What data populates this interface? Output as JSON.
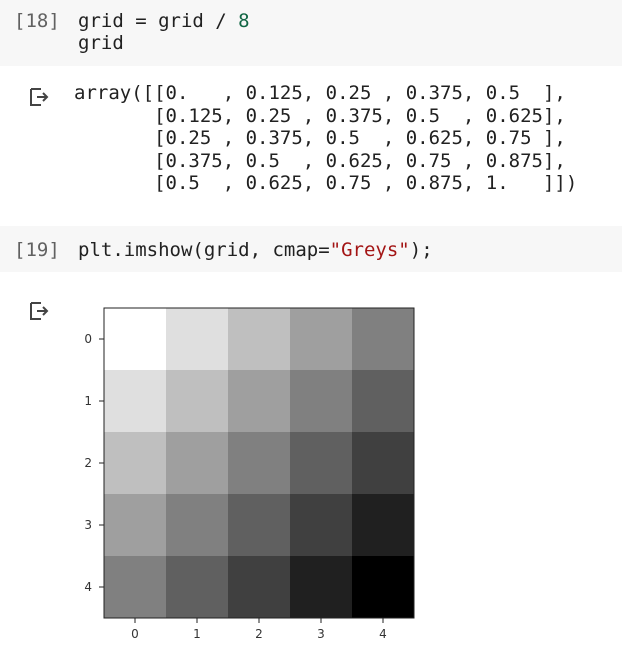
{
  "cells": [
    {
      "prompt": "[18]",
      "code_lines": [
        {
          "parts": [
            {
              "t": "grid = grid / ",
              "c": ""
            },
            {
              "t": "8",
              "c": "num"
            }
          ]
        },
        {
          "parts": [
            {
              "t": "grid",
              "c": ""
            }
          ]
        }
      ],
      "output_icon": "output-redirect-icon",
      "output_lines": [
        "array([[0.   , 0.125, 0.25 , 0.375, 0.5  ],",
        "       [0.125, 0.25 , 0.375, 0.5  , 0.625],",
        "       [0.25 , 0.375, 0.5  , 0.625, 0.75 ],",
        "       [0.375, 0.5  , 0.625, 0.75 , 0.875],",
        "       [0.5  , 0.625, 0.75 , 0.875, 1.   ]])"
      ]
    },
    {
      "prompt": "[19]",
      "code_lines": [
        {
          "parts": [
            {
              "t": "plt.imshow(grid, cmap=",
              "c": ""
            },
            {
              "t": "\"Greys\"",
              "c": "str"
            },
            {
              "t": ");",
              "c": ""
            }
          ]
        }
      ],
      "output_icon": "output-redirect-icon"
    }
  ],
  "chart_data": {
    "type": "heatmap",
    "colormap": "Greys",
    "x": [
      0,
      1,
      2,
      3,
      4
    ],
    "y": [
      0,
      1,
      2,
      3,
      4
    ],
    "x_tick_labels": [
      "0",
      "1",
      "2",
      "3",
      "4"
    ],
    "y_tick_labels": [
      "0",
      "1",
      "2",
      "3",
      "4"
    ],
    "values": [
      [
        0.0,
        0.125,
        0.25,
        0.375,
        0.5
      ],
      [
        0.125,
        0.25,
        0.375,
        0.5,
        0.625
      ],
      [
        0.25,
        0.375,
        0.5,
        0.625,
        0.75
      ],
      [
        0.375,
        0.5,
        0.625,
        0.75,
        0.875
      ],
      [
        0.5,
        0.625,
        0.75,
        0.875,
        1.0
      ]
    ],
    "title": "",
    "xlabel": "",
    "ylabel": "",
    "grid": false
  },
  "colors": {
    "cell_background": "#f7f7f7",
    "number": "#116644",
    "string": "#a31515"
  }
}
